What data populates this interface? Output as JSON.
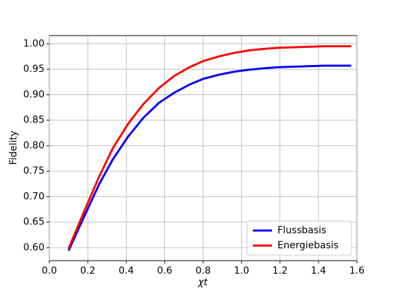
{
  "chart_data": {
    "type": "line",
    "x": [
      0.1,
      0.18,
      0.26,
      0.33,
      0.41,
      0.49,
      0.57,
      0.65,
      0.73,
      0.8,
      0.88,
      0.96,
      1.04,
      1.12,
      1.19,
      1.27,
      1.35,
      1.43,
      1.51,
      1.57
    ],
    "series": [
      {
        "name": "Flussbasis",
        "color": "#0000ff",
        "values": [
          0.594,
          0.66,
          0.725,
          0.773,
          0.818,
          0.855,
          0.884,
          0.904,
          0.92,
          0.931,
          0.939,
          0.945,
          0.949,
          0.952,
          0.954,
          0.955,
          0.956,
          0.957,
          0.957,
          0.957
        ]
      },
      {
        "name": "Energiebasis",
        "color": "#ff0000",
        "values": [
          0.598,
          0.67,
          0.74,
          0.795,
          0.843,
          0.882,
          0.913,
          0.937,
          0.954,
          0.966,
          0.975,
          0.982,
          0.987,
          0.99,
          0.992,
          0.993,
          0.994,
          0.995,
          0.995,
          0.995
        ]
      }
    ],
    "xlabel": "χt",
    "ylabel": "Fidelity",
    "xlim": [
      0,
      1.6
    ],
    "ylim": [
      0.5745,
      1.016
    ],
    "xticks": [
      {
        "value": 0,
        "label": "0.0"
      },
      0.2,
      0.4,
      0.6,
      0.8,
      {
        "value": 1,
        "label": "1.0"
      },
      1.2,
      1.4,
      1.6
    ],
    "yticks": [
      {
        "value": 0.6,
        "label": "0.60"
      },
      0.65,
      {
        "value": 0.7,
        "label": "0.70"
      },
      0.75,
      {
        "value": 0.8,
        "label": "0.80"
      },
      0.85,
      {
        "value": 0.9,
        "label": "0.90"
      },
      0.95,
      {
        "value": 1,
        "label": "1.00"
      }
    ],
    "grid": true,
    "legend": "lower right"
  }
}
